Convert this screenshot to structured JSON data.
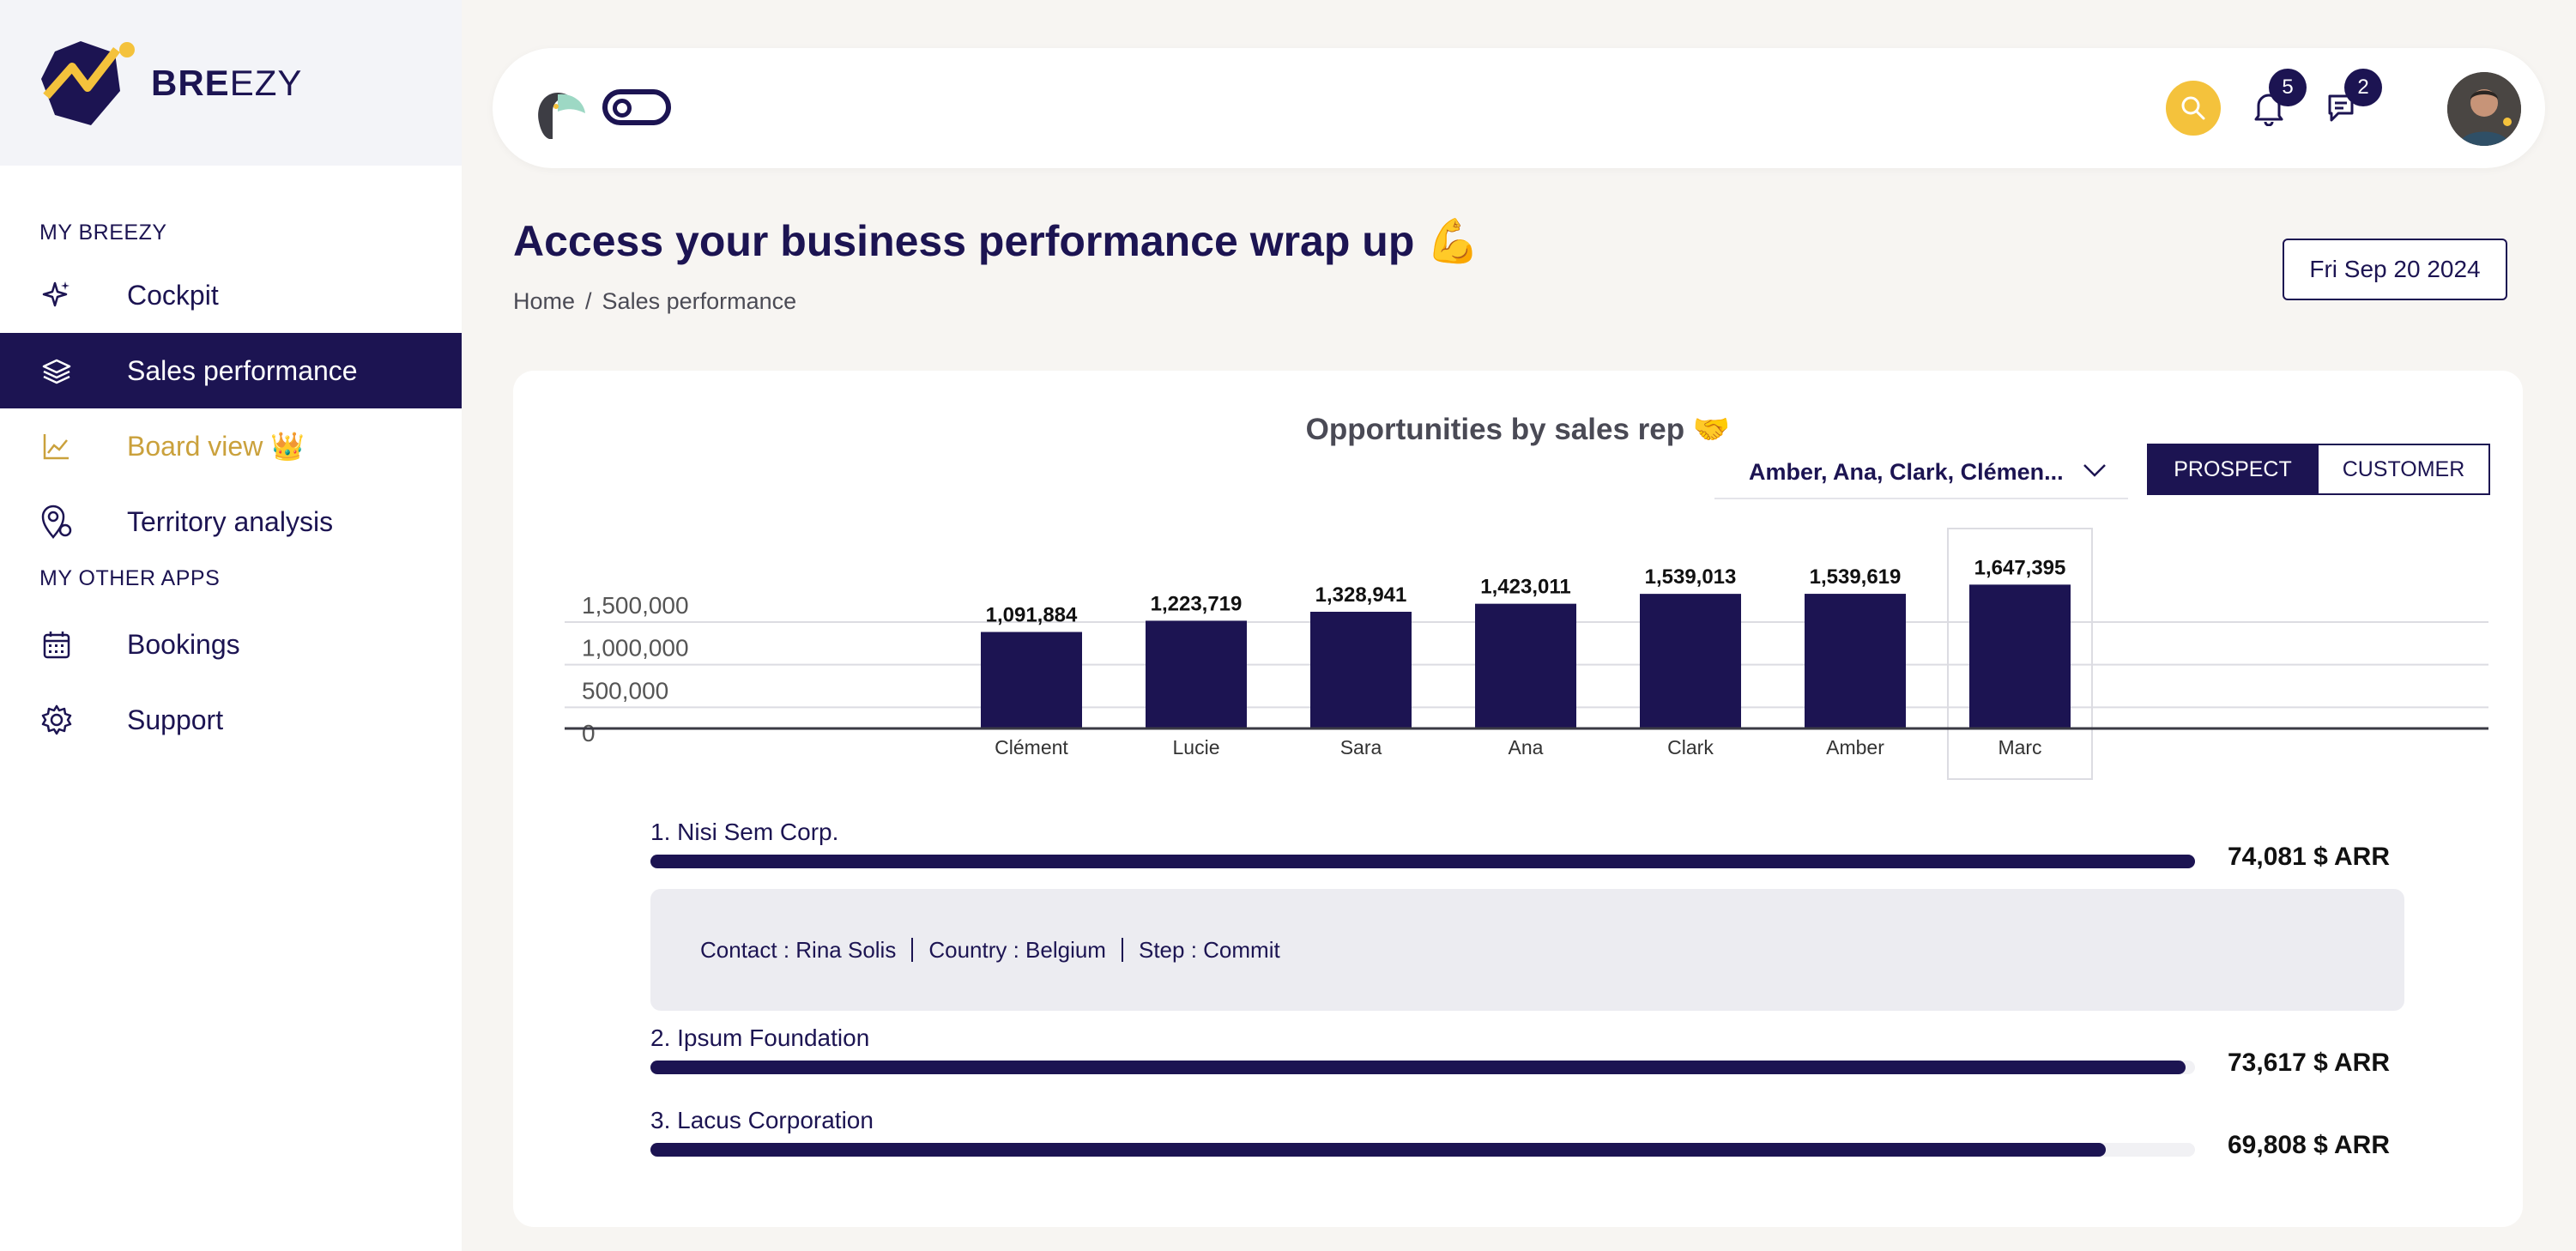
{
  "brand": {
    "name_bold": "BRE",
    "name_light": "EZY",
    "brand_color": "#1c1452",
    "accent_color": "#f4c23c",
    "gold_color": "#caa13c"
  },
  "sidebar": {
    "section_my": "MY BREEZY",
    "section_other": "MY OTHER APPS",
    "items": [
      {
        "label": "Cockpit",
        "icon": "sparkles-icon"
      },
      {
        "label": "Sales performance",
        "icon": "layers-icon"
      },
      {
        "label": "Board view 👑",
        "icon": "line-chart-icon"
      },
      {
        "label": "Territory analysis",
        "icon": "map-pin-icon"
      },
      {
        "label": "Bookings",
        "icon": "calendar-icon"
      },
      {
        "label": "Support",
        "icon": "gear-icon"
      }
    ]
  },
  "topbar": {
    "notifications_count": "5",
    "messages_count": "2"
  },
  "header": {
    "title": "Access your business performance wrap up 💪",
    "breadcrumb_home": "Home",
    "breadcrumb_sep": "/",
    "breadcrumb_current": "Sales performance",
    "date": "Fri Sep 20 2024"
  },
  "card": {
    "chart_title": "Opportunities by sales rep 🤝",
    "rep_filter_value": "Amber, Ana, Clark, Clémen...",
    "segment_prospect": "PROSPECT",
    "segment_customer": "CUSTOMER",
    "opportunities": [
      {
        "name": "1. Nisi Sem Corp.",
        "value": "74,081 $ ARR",
        "fill": 1.0
      },
      {
        "name": "2. Ipsum Foundation",
        "value": "73,617 $ ARR",
        "fill": 0.9937
      },
      {
        "name": "3. Lacus Corporation",
        "value": "69,808 $ ARR",
        "fill": 0.9423
      }
    ],
    "detail": {
      "contact": "Contact : Rina Solis",
      "country": "Country : Belgium",
      "step": "Step : Commit"
    }
  },
  "chart_data": {
    "type": "bar",
    "title": "Opportunities by sales rep 🤝",
    "categories": [
      "Clément",
      "Lucie",
      "Sara",
      "Ana",
      "Clark",
      "Amber",
      "Marc"
    ],
    "values": [
      1091884,
      1223719,
      1328941,
      1423011,
      1539013,
      1539619,
      1647395
    ],
    "value_labels": [
      "1,091,884",
      "1,223,719",
      "1,328,941",
      "1,423,011",
      "1,539,013",
      "1,539,619",
      "1,647,395"
    ],
    "yticks": [
      0,
      500000,
      1000000,
      1500000
    ],
    "ytick_labels": [
      "0",
      "500,000",
      "1,000,000",
      "1,500,000"
    ],
    "ylim": [
      0,
      1500000
    ],
    "highlighted": "Marc",
    "grid": true,
    "bar_color": "#1c1452"
  }
}
